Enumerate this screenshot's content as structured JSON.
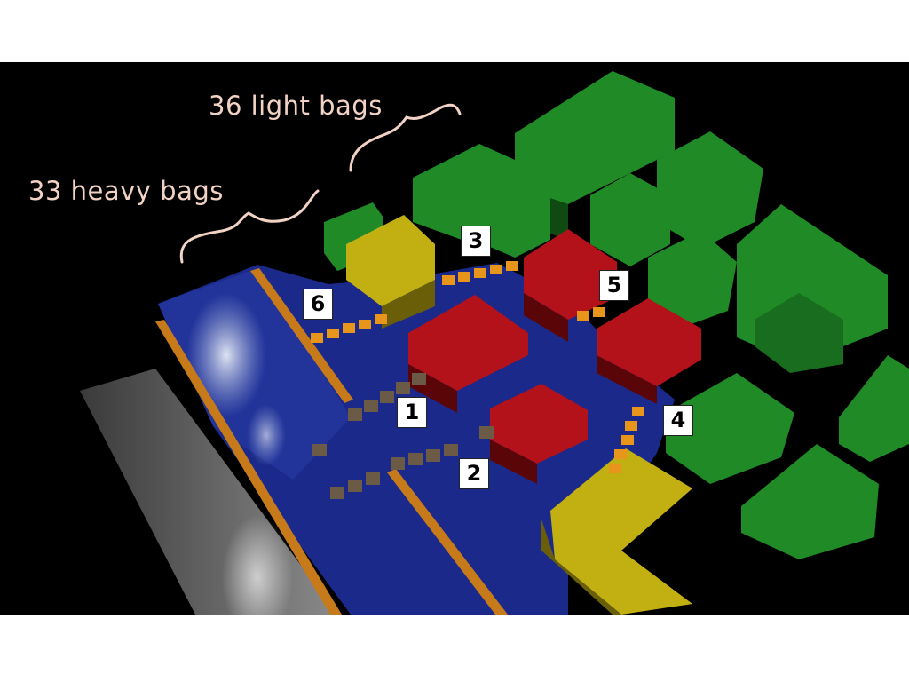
{
  "annotations": {
    "light_bags": "36 light bags",
    "heavy_bags": "33 heavy bags"
  },
  "markers": [
    "1",
    "2",
    "3",
    "4",
    "5",
    "6"
  ],
  "colors": {
    "background": "#000000",
    "water": "#1b2a8a",
    "green_building": "#1f8a26",
    "red_building": "#b3121a",
    "yellow_building": "#c2b013",
    "orange_wall": "#c77a1a",
    "light_bag": "#e8951c",
    "heavy_bag": "#6b5a46",
    "annotation_text": "#f1d2c4"
  }
}
